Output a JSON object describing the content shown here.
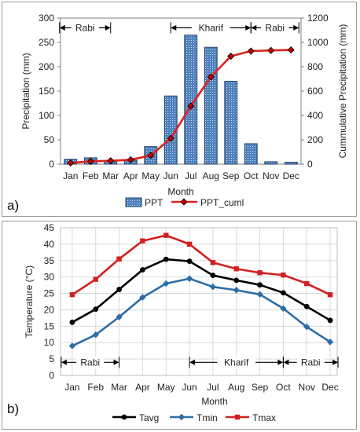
{
  "chart_data": [
    {
      "type": "bar+line",
      "panel_label": "a)",
      "categories": [
        "Jan",
        "Feb",
        "Mar",
        "Apr",
        "May",
        "Jun",
        "Jul",
        "Aug",
        "Sep",
        "Oct",
        "Nov",
        "Dec"
      ],
      "xlabel": "Month",
      "ylabel": "Precipitation (mm)",
      "ylabel_right": "Cummulative Precipitation (mm)",
      "ylim": [
        0,
        300
      ],
      "yticks": [
        0,
        50,
        100,
        150,
        200,
        250,
        300
      ],
      "ylim_right": [
        0,
        1200
      ],
      "yticks_right": [
        0,
        200,
        400,
        600,
        800,
        1000,
        1200
      ],
      "series": [
        {
          "name": "PPT",
          "axis": "left",
          "kind": "bar",
          "color": "#4f81bd",
          "values": [
            10,
            13,
            5,
            8,
            36,
            140,
            265,
            240,
            170,
            42,
            5,
            4
          ]
        },
        {
          "name": "PPT_cuml",
          "axis": "right",
          "kind": "line",
          "color": "#e02020",
          "values": [
            10,
            23,
            28,
            36,
            72,
            212,
            477,
            717,
            887,
            929,
            934,
            938
          ]
        }
      ],
      "seasons": [
        {
          "label": "Rabi",
          "from": "Jan",
          "to": "Mar",
          "level": 280
        },
        {
          "label": "Kharif",
          "from": "Jun",
          "to": "Oct",
          "level": 280
        },
        {
          "label": "Rabi",
          "from": "Oct",
          "to": "Dec",
          "level": 280
        }
      ],
      "legend_position": "bottom"
    },
    {
      "type": "line",
      "panel_label": "b)",
      "categories": [
        "Jan",
        "Feb",
        "Mar",
        "Apr",
        "May",
        "Jun",
        "Jul",
        "Aug",
        "Sep",
        "Oct",
        "Nov",
        "Dec"
      ],
      "xlabel": "Month",
      "ylabel": "Temperature (°C)",
      "ylim": [
        0,
        45
      ],
      "yticks": [
        0,
        5,
        10,
        15,
        20,
        25,
        30,
        35,
        40,
        45
      ],
      "grid": true,
      "series": [
        {
          "name": "Tavg",
          "color": "#000000",
          "marker": "circle",
          "values": [
            16.2,
            20.2,
            26.2,
            32.2,
            35.4,
            34.8,
            30.5,
            29.0,
            27.6,
            25.2,
            21.0,
            16.8
          ]
        },
        {
          "name": "Tmin",
          "color": "#2e6da4",
          "marker": "diamond",
          "values": [
            9.0,
            12.4,
            17.8,
            23.8,
            28.0,
            29.5,
            27.0,
            26.0,
            24.7,
            20.4,
            14.8,
            10.2
          ]
        },
        {
          "name": "Tmax",
          "color": "#d21f1f",
          "marker": "square",
          "values": [
            24.6,
            29.3,
            35.5,
            41.0,
            42.7,
            40.0,
            34.4,
            32.5,
            31.3,
            30.6,
            28.0,
            24.6
          ]
        }
      ],
      "seasons": [
        {
          "label": "Rabi",
          "from": "Jan",
          "to": "Mar",
          "level": 4
        },
        {
          "label": "Kharif",
          "from": "Jun",
          "to": "Oct",
          "level": 4
        },
        {
          "label": "Rabi",
          "from": "Oct",
          "to": "Dec",
          "level": 4
        }
      ],
      "legend_position": "bottom"
    }
  ]
}
